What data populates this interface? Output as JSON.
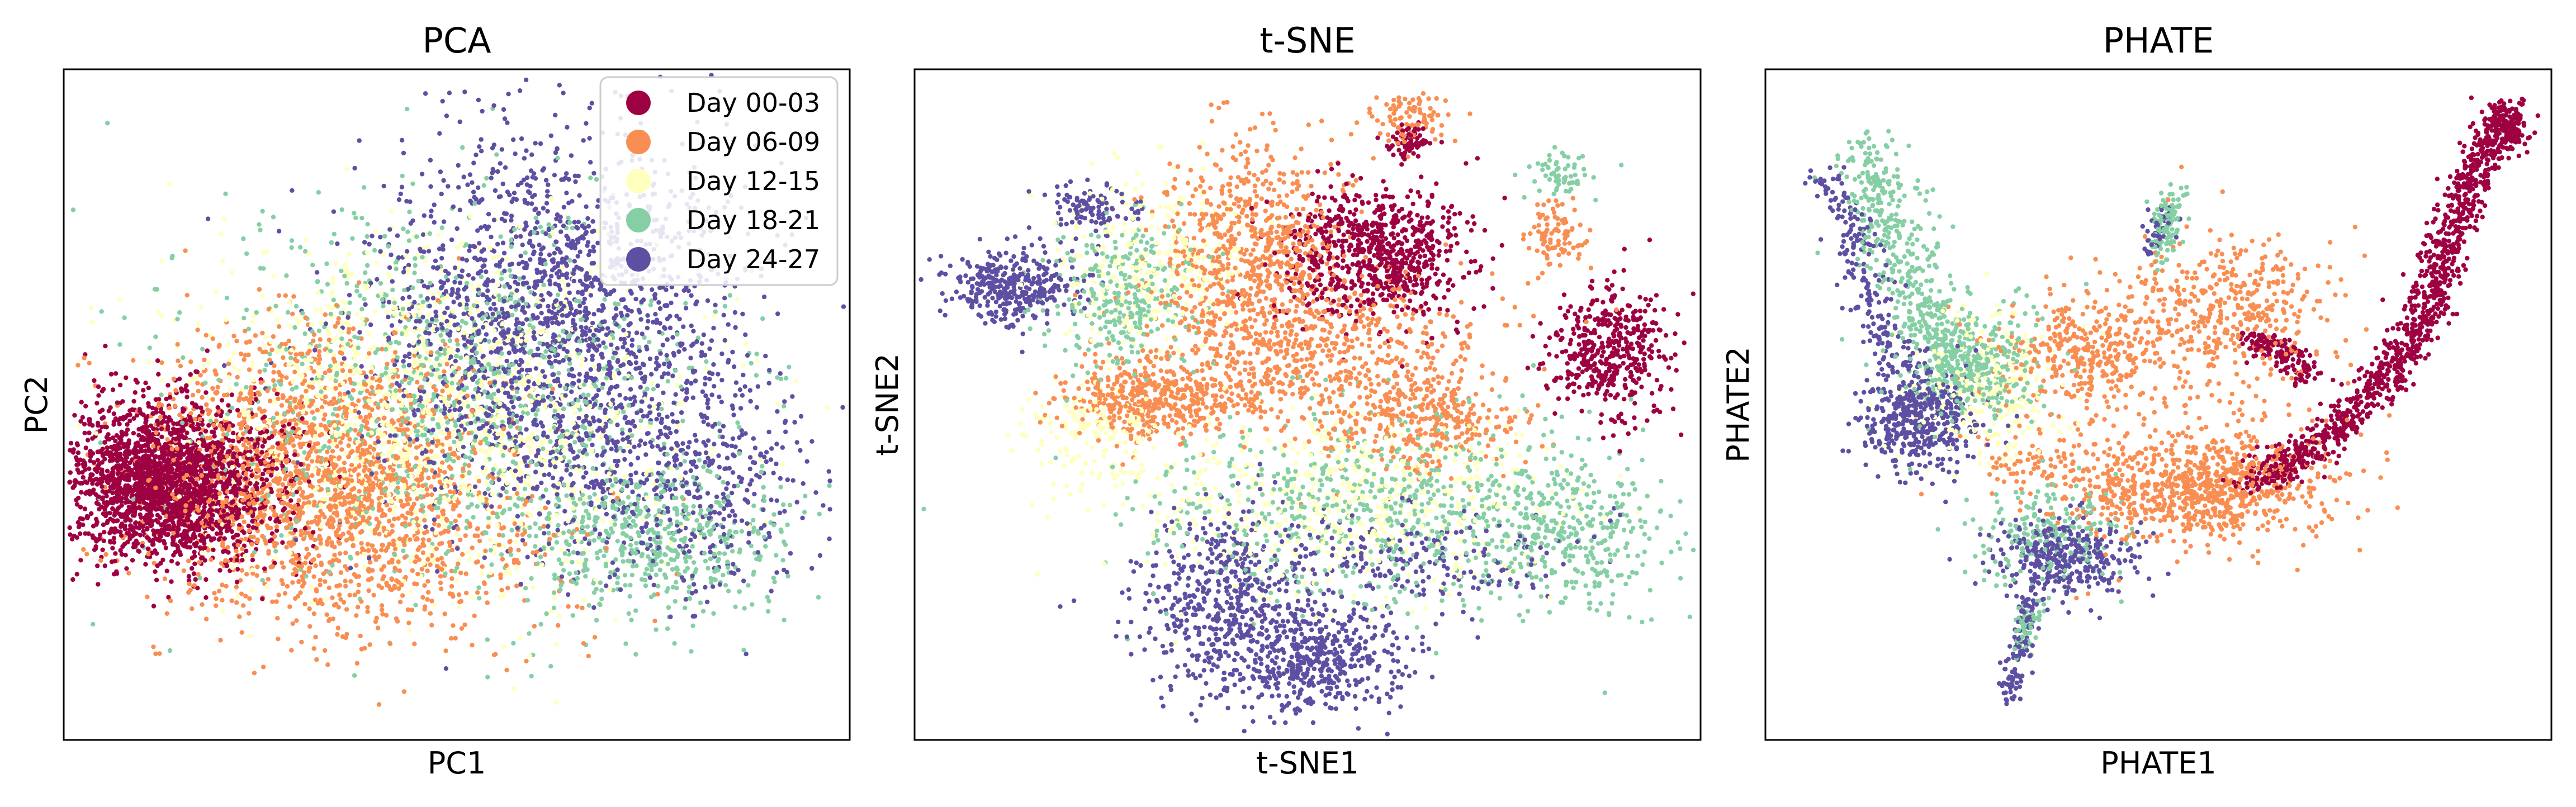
{
  "chart_data": {
    "type": "scatter",
    "series": [
      {
        "name": "Day 00-03",
        "color": "#9e0142"
      },
      {
        "name": "Day 06-09",
        "color": "#f98e52"
      },
      {
        "name": "Day 12-15",
        "color": "#ffffbe"
      },
      {
        "name": "Day 18-21",
        "color": "#86cfa5"
      },
      {
        "name": "Day 24-27",
        "color": "#5e4fa2"
      }
    ],
    "legend": {
      "panel": "PCA",
      "placement": "top-right"
    },
    "panels": [
      {
        "id": "pca",
        "title": "PCA",
        "xlabel": "PC1",
        "ylabel": "PC2",
        "ticks": "none",
        "xlim": [
          0,
          100
        ],
        "ylim": [
          0,
          100
        ],
        "clusters": [
          {
            "series": 0,
            "cx": 13,
            "cy": 38,
            "sx": 7,
            "sy": 6,
            "n": 2300
          },
          {
            "series": 1,
            "cx": 32,
            "cy": 41,
            "sx": 11,
            "sy": 10,
            "n": 1500
          },
          {
            "series": 1,
            "cx": 40,
            "cy": 28,
            "sx": 13,
            "sy": 8,
            "n": 500
          },
          {
            "series": 2,
            "cx": 47,
            "cy": 48,
            "sx": 15,
            "sy": 13,
            "n": 1300
          },
          {
            "series": 3,
            "cx": 50,
            "cy": 52,
            "sx": 16,
            "sy": 15,
            "n": 1000
          },
          {
            "series": 3,
            "cx": 76,
            "cy": 30,
            "sx": 9,
            "sy": 6,
            "n": 500
          },
          {
            "series": 4,
            "cx": 63,
            "cy": 62,
            "sx": 12,
            "sy": 15,
            "n": 1900
          },
          {
            "series": 4,
            "cx": 80,
            "cy": 38,
            "sx": 9,
            "sy": 9,
            "n": 400
          }
        ]
      },
      {
        "id": "tsne",
        "title": "t-SNE",
        "xlabel": "t-SNE1",
        "ylabel": "t-SNE2",
        "ticks": "none",
        "xlim": [
          0,
          100
        ],
        "ylim": [
          0,
          100
        ],
        "clusters": [
          {
            "series": 0,
            "cx": 59,
            "cy": 73,
            "sx": 6,
            "sy": 5,
            "n": 750
          },
          {
            "series": 0,
            "cx": 89,
            "cy": 58,
            "sx": 4,
            "sy": 5,
            "n": 450
          },
          {
            "series": 0,
            "cx": 63,
            "cy": 90,
            "sx": 1.5,
            "sy": 1.5,
            "n": 70
          },
          {
            "series": 1,
            "cx": 43,
            "cy": 73,
            "sx": 6,
            "sy": 9,
            "n": 700
          },
          {
            "series": 1,
            "cx": 31,
            "cy": 51,
            "sx": 6,
            "sy": 3,
            "n": 450
          },
          {
            "series": 1,
            "cx": 52,
            "cy": 57,
            "sx": 11,
            "sy": 6,
            "n": 600
          },
          {
            "series": 1,
            "cx": 65,
            "cy": 47,
            "sx": 6,
            "sy": 4,
            "n": 300
          },
          {
            "series": 1,
            "cx": 82,
            "cy": 76,
            "sx": 2,
            "sy": 2.5,
            "n": 90
          },
          {
            "series": 1,
            "cx": 63,
            "cy": 93,
            "sx": 2.5,
            "sy": 2,
            "n": 90
          },
          {
            "series": 2,
            "cx": 30,
            "cy": 72,
            "sx": 6,
            "sy": 7,
            "n": 300
          },
          {
            "series": 2,
            "cx": 56,
            "cy": 36,
            "sx": 14,
            "sy": 7,
            "n": 550
          },
          {
            "series": 2,
            "cx": 22,
            "cy": 46,
            "sx": 4,
            "sy": 4,
            "n": 150
          },
          {
            "series": 3,
            "cx": 26,
            "cy": 66,
            "sx": 5,
            "sy": 6,
            "n": 300
          },
          {
            "series": 3,
            "cx": 60,
            "cy": 34,
            "sx": 16,
            "sy": 8,
            "n": 650
          },
          {
            "series": 3,
            "cx": 84,
            "cy": 30,
            "sx": 6,
            "sy": 6,
            "n": 300
          },
          {
            "series": 3,
            "cx": 83,
            "cy": 85,
            "sx": 2,
            "sy": 2,
            "n": 60
          },
          {
            "series": 4,
            "cx": 12,
            "cy": 68,
            "sx": 4,
            "sy": 3,
            "n": 350
          },
          {
            "series": 4,
            "cx": 39,
            "cy": 20,
            "sx": 6,
            "sy": 7,
            "n": 500
          },
          {
            "series": 4,
            "cx": 51,
            "cy": 11,
            "sx": 6,
            "sy": 4,
            "n": 450
          },
          {
            "series": 4,
            "cx": 22,
            "cy": 80,
            "sx": 3,
            "sy": 2,
            "n": 100
          },
          {
            "series": 4,
            "cx": 66,
            "cy": 26,
            "sx": 10,
            "sy": 4,
            "n": 200
          }
        ]
      },
      {
        "id": "phate",
        "title": "PHATE",
        "xlabel": "PHATE1",
        "ylabel": "PHATE2",
        "ticks": "none",
        "xlim": [
          0,
          100
        ],
        "ylim": [
          0,
          100
        ],
        "clusters": [
          {
            "series": 4,
            "cx": 19,
            "cy": 48,
            "sx": 3.5,
            "sy": 4,
            "n": 450
          },
          {
            "series": 4,
            "cx": 38,
            "cy": 27,
            "sx": 5,
            "sy": 3,
            "n": 350
          },
          {
            "series": 3,
            "cx": 26,
            "cy": 56,
            "sx": 5,
            "sy": 5,
            "n": 300
          },
          {
            "series": 3,
            "cx": 35,
            "cy": 30,
            "sx": 5,
            "sy": 4,
            "n": 200
          },
          {
            "series": 2,
            "cx": 28,
            "cy": 52,
            "sx": 5,
            "sy": 6,
            "n": 250
          },
          {
            "series": 1,
            "cx": 55,
            "cy": 37,
            "sx": 8,
            "sy": 4,
            "n": 650
          },
          {
            "series": 1,
            "cx": 40,
            "cy": 58,
            "sx": 5,
            "sy": 4,
            "n": 300
          },
          {
            "series": 1,
            "cx": 59,
            "cy": 66,
            "sx": 7,
            "sy": 5,
            "n": 350
          },
          {
            "series": 1,
            "cx": 52,
            "cy": 50,
            "sx": 12,
            "sy": 10,
            "n": 250
          },
          {
            "series": 0,
            "cx": 95,
            "cy": 93,
            "sx": 1.5,
            "sy": 1.8,
            "n": 140
          }
        ],
        "paths": [
          {
            "series": 3,
            "points": [
              [
                12,
                88
              ],
              [
                15,
                78
              ],
              [
                18,
                68
              ],
              [
                22,
                60
              ],
              [
                27,
                52
              ]
            ],
            "width": 2.5,
            "n": 500
          },
          {
            "series": 4,
            "points": [
              [
                8,
                85
              ],
              [
                11,
                73
              ],
              [
                14,
                63
              ],
              [
                17,
                55
              ]
            ],
            "width": 1.5,
            "n": 200
          },
          {
            "series": 0,
            "points": [
              [
                62,
                38
              ],
              [
                72,
                45
              ],
              [
                80,
                55
              ],
              [
                84,
                62
              ],
              [
                86,
                70
              ],
              [
                89,
                80
              ],
              [
                92,
                88
              ],
              [
                95,
                93
              ]
            ],
            "width": 1.5,
            "n": 1100
          },
          {
            "series": 0,
            "points": [
              [
                61,
                60
              ],
              [
                66,
                58
              ],
              [
                70,
                54
              ]
            ],
            "width": 1.0,
            "n": 150
          },
          {
            "series": 4,
            "points": [
              [
                34,
                22
              ],
              [
                32,
                12
              ],
              [
                30,
                5
              ]
            ],
            "width": 0.8,
            "n": 120
          },
          {
            "series": 3,
            "points": [
              [
                34,
                20
              ],
              [
                32,
                12
              ]
            ],
            "width": 0.8,
            "n": 60
          },
          {
            "series": 3,
            "points": [
              [
                50,
                72
              ],
              [
                52,
                82
              ]
            ],
            "width": 1.0,
            "n": 120
          },
          {
            "series": 4,
            "points": [
              [
                49,
                73
              ],
              [
                51,
                80
              ]
            ],
            "width": 0.8,
            "n": 40
          },
          {
            "series": 1,
            "points": [
              [
                28,
                42
              ],
              [
                48,
                37
              ],
              [
                70,
                40
              ]
            ],
            "width": 2.0,
            "n": 200
          }
        ]
      }
    ]
  }
}
